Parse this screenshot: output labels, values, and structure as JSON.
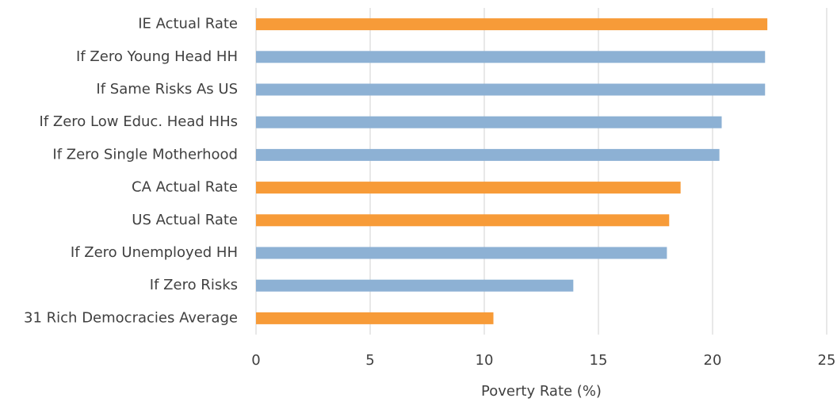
{
  "chart_data": {
    "type": "barh",
    "categories": [
      "IE Actual Rate",
      "If Zero Young Head HH",
      "If Same Risks As US",
      "If Zero Low Educ. Head HHs",
      "If Zero Single Motherhood",
      "CA Actual Rate",
      "US Actual Rate",
      "If Zero Unemployed HH",
      "If Zero Risks",
      "31 Rich Democracies Average"
    ],
    "values": [
      22.4,
      22.3,
      22.3,
      20.4,
      20.3,
      18.6,
      18.1,
      18.0,
      13.9,
      10.4
    ],
    "colors": [
      "#f79b38",
      "#8db1d4",
      "#8db1d4",
      "#8db1d4",
      "#8db1d4",
      "#f79b38",
      "#f79b38",
      "#8db1d4",
      "#8db1d4",
      "#f79b38"
    ],
    "xlabel": "Poverty Rate (%)",
    "xlim": [
      0,
      25
    ],
    "xticks": [
      0,
      5,
      10,
      15,
      20,
      25
    ],
    "grid": true
  }
}
